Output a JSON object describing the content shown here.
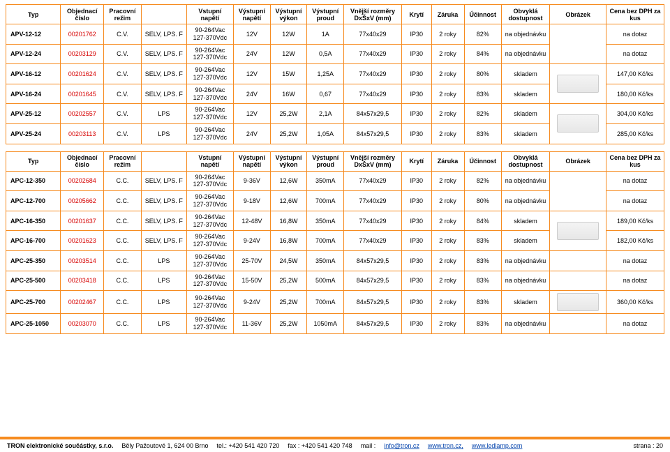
{
  "headers": {
    "typ": "Typ",
    "obj": "Objednací číslo",
    "rezim": "Pracovní režim",
    "blank": "",
    "vnap": "Vstupní napětí",
    "outnap": "Výstupní napětí",
    "vykon": "Výstupní výkon",
    "proud": "Výstupní proud",
    "rozmery": "Vnější rozměry DxŠxV (mm)",
    "kryti": "Krytí",
    "zaruka": "Záruka",
    "ucinnost": "Účinnost",
    "dostupnost": "Obvyklá dostupnost",
    "obrazek": "Obrázek",
    "cena": "Cena bez DPH za kus"
  },
  "table1": {
    "rows": [
      {
        "typ": "APV-12-12",
        "obj": "00201762",
        "rezim": "C.V.",
        "selv": "SELV, LPS. F",
        "vnap1": "90-264Vac",
        "vnap2": "127-370Vdc",
        "out": "12V",
        "vykon": "12W",
        "proud": "1A",
        "roz": "77x40x29",
        "kryti": "IP30",
        "zar": "2 roky",
        "uc": "82%",
        "dost": "na objednávku",
        "img": false,
        "cena": "na dotaz",
        "span": 2
      },
      {
        "typ": "APV-12-24",
        "obj": "00203129",
        "rezim": "C.V.",
        "selv": "SELV, LPS. F",
        "vnap1": "90-264Vac",
        "vnap2": "127-370Vdc",
        "out": "24V",
        "vykon": "12W",
        "proud": "0,5A",
        "roz": "77x40x29",
        "kryti": "IP30",
        "zar": "2 roky",
        "uc": "84%",
        "dost": "na objednávku",
        "cena": "na dotaz"
      },
      {
        "typ": "APV-16-12",
        "obj": "00201624",
        "rezim": "C.V.",
        "selv": "SELV, LPS. F",
        "vnap1": "90-264Vac",
        "vnap2": "127-370Vdc",
        "out": "12V",
        "vykon": "15W",
        "proud": "1,25A",
        "roz": "77x40x29",
        "kryti": "IP30",
        "zar": "2 roky",
        "uc": "80%",
        "dost": "skladem",
        "img": true,
        "cena": "147,00 Kč/ks",
        "span": 2
      },
      {
        "typ": "APV-16-24",
        "obj": "00201645",
        "rezim": "C.V.",
        "selv": "SELV, LPS. F",
        "vnap1": "90-264Vac",
        "vnap2": "127-370Vdc",
        "out": "24V",
        "vykon": "16W",
        "proud": "0,67",
        "roz": "77x40x29",
        "kryti": "IP30",
        "zar": "2 roky",
        "uc": "83%",
        "dost": "skladem",
        "cena": "180,00 Kč/ks"
      },
      {
        "typ": "APV-25-12",
        "obj": "00202557",
        "rezim": "C.V.",
        "selv": "LPS",
        "vnap1": "90-264Vac",
        "vnap2": "127-370Vdc",
        "out": "12V",
        "vykon": "25,2W",
        "proud": "2,1A",
        "roz": "84x57x29,5",
        "kryti": "IP30",
        "zar": "2 roky",
        "uc": "82%",
        "dost": "skladem",
        "img": true,
        "cena": "304,00 Kč/ks",
        "span": 2
      },
      {
        "typ": "APV-25-24",
        "obj": "00203113",
        "rezim": "C.V.",
        "selv": "LPS",
        "vnap1": "90-264Vac",
        "vnap2": "127-370Vdc",
        "out": "24V",
        "vykon": "25,2W",
        "proud": "1,05A",
        "roz": "84x57x29,5",
        "kryti": "IP30",
        "zar": "2 roky",
        "uc": "83%",
        "dost": "skladem",
        "cena": "285,00 Kč/ks"
      }
    ]
  },
  "table2": {
    "rows": [
      {
        "typ": "APC-12-350",
        "obj": "00202684",
        "rezim": "C.C.",
        "selv": "SELV, LPS. F",
        "vnap1": "90-264Vac",
        "vnap2": "127-370Vdc",
        "out": "9-36V",
        "vykon": "12,6W",
        "proud": "350mA",
        "roz": "77x40x29",
        "kryti": "IP30",
        "zar": "2 roky",
        "uc": "82%",
        "dost": "na objednávku",
        "img": false,
        "cena": "na dotaz",
        "span": 2
      },
      {
        "typ": "APC-12-700",
        "obj": "00205662",
        "rezim": "C.C.",
        "selv": "SELV, LPS. F",
        "vnap1": "90-264Vac",
        "vnap2": "127-370Vdc",
        "out": "9-18V",
        "vykon": "12,6W",
        "proud": "700mA",
        "roz": "77x40x29",
        "kryti": "IP30",
        "zar": "2 roky",
        "uc": "80%",
        "dost": "na objednávku",
        "cena": "na dotaz"
      },
      {
        "typ": "APC-16-350",
        "obj": "00201637",
        "rezim": "C.C.",
        "selv": "SELV, LPS. F",
        "vnap1": "90-264Vac",
        "vnap2": "127-370Vdc",
        "out": "12-48V",
        "vykon": "16,8W",
        "proud": "350mA",
        "roz": "77x40x29",
        "kryti": "IP30",
        "zar": "2 roky",
        "uc": "84%",
        "dost": "skladem",
        "img": true,
        "cena": "189,00 Kč/ks",
        "span": 2
      },
      {
        "typ": "APC-16-700",
        "obj": "00201623",
        "rezim": "C.C.",
        "selv": "SELV, LPS. F",
        "vnap1": "90-264Vac",
        "vnap2": "127-370Vdc",
        "out": "9-24V",
        "vykon": "16,8W",
        "proud": "700mA",
        "roz": "77x40x29",
        "kryti": "IP30",
        "zar": "2 roky",
        "uc": "83%",
        "dost": "skladem",
        "cena": "182,00 Kč/ks"
      },
      {
        "typ": "APC-25-350",
        "obj": "00203514",
        "rezim": "C.C.",
        "selv": "LPS",
        "vnap1": "90-264Vac",
        "vnap2": "127-370Vdc",
        "out": "25-70V",
        "vykon": "24,5W",
        "proud": "350mA",
        "roz": "84x57x29,5",
        "kryti": "IP30",
        "zar": "2 roky",
        "uc": "83%",
        "dost": "na objednávku",
        "img": false,
        "cena": "na dotaz",
        "span": 1
      },
      {
        "typ": "APC-25-500",
        "obj": "00203418",
        "rezim": "C.C.",
        "selv": "LPS",
        "vnap1": "90-264Vac",
        "vnap2": "127-370Vdc",
        "out": "15-50V",
        "vykon": "25,2W",
        "proud": "500mA",
        "roz": "84x57x29,5",
        "kryti": "IP30",
        "zar": "2 roky",
        "uc": "83%",
        "dost": "na objednávku",
        "img": false,
        "cena": "na dotaz",
        "span": 1
      },
      {
        "typ": "APC-25-700",
        "obj": "00202467",
        "rezim": "C.C.",
        "selv": "LPS",
        "vnap1": "90-264Vac",
        "vnap2": "127-370Vdc",
        "out": "9-24V",
        "vykon": "25,2W",
        "proud": "700mA",
        "roz": "84x57x29,5",
        "kryti": "IP30",
        "zar": "2 roky",
        "uc": "83%",
        "dost": "skladem",
        "img": true,
        "cena": "360,00 Kč/ks",
        "span": 1
      },
      {
        "typ": "APC-25-1050",
        "obj": "00203070",
        "rezim": "C.C.",
        "selv": "LPS",
        "vnap1": "90-264Vac",
        "vnap2": "127-370Vdc",
        "out": "11-36V",
        "vykon": "25,2W",
        "proud": "1050mA",
        "roz": "84x57x29,5",
        "kryti": "IP30",
        "zar": "2 roky",
        "uc": "83%",
        "dost": "na objednávku",
        "img": false,
        "cena": "na dotaz",
        "span": 1
      }
    ]
  },
  "footer": {
    "company": "TRON elektronické součástky, s.r.o.",
    "addr": "Běly Pažoutové 1, 624 00 Brno",
    "tel": "tel.: +420 541 420 720",
    "fax": "fax : +420 541 420 748",
    "mail_label": "mail :",
    "mail": "info@tron.cz",
    "www1": "www.tron.cz,",
    "www2": "www.ledlamp.com",
    "page": "strana : 20"
  }
}
